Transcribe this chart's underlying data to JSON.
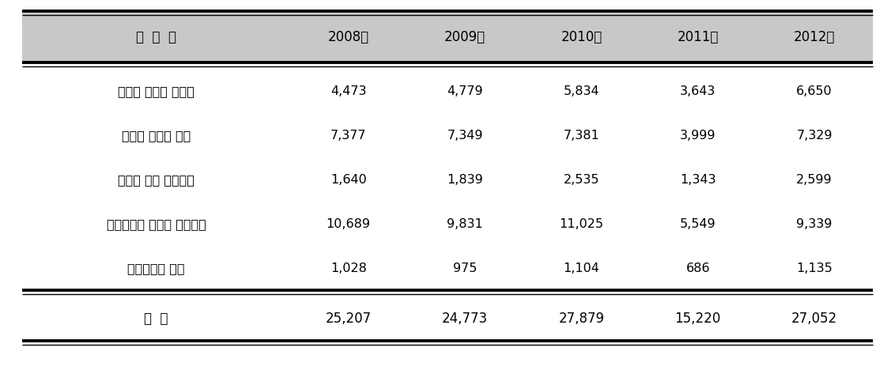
{
  "header": [
    "장  치  명",
    "2008년",
    "2009년",
    "2010년",
    "2011년",
    "2012년"
  ],
  "rows": [
    [
      "진단용 엑스선 발생기",
      "4,473",
      "4,779",
      "5,834",
      "3,643",
      "6,650"
    ],
    [
      "진단용 엑스선 장치",
      "7,377",
      "7,349",
      "7,381",
      "3,999",
      "7,329"
    ],
    [
      "전산화 단층 촬영장치",
      "1,640",
      "1,839",
      "2,535",
      "1,343",
      "2,599"
    ],
    [
      "치과진단용 엑스선 발생장치",
      "10,689",
      "9,831",
      "11,025",
      "5,549",
      "9,339"
    ],
    [
      "유방촬영용 장치",
      "1,028",
      "975",
      "1,104",
      "686",
      "1,135"
    ]
  ],
  "footer": [
    "충  계",
    "25,207",
    "24,773",
    "27,879",
    "15,220",
    "27,052"
  ],
  "header_bg": "#c8c8c8",
  "row_bg": "#ffffff",
  "text_color": "#000000",
  "fig_width": 11.32,
  "fig_height": 4.73,
  "dpi": 100
}
